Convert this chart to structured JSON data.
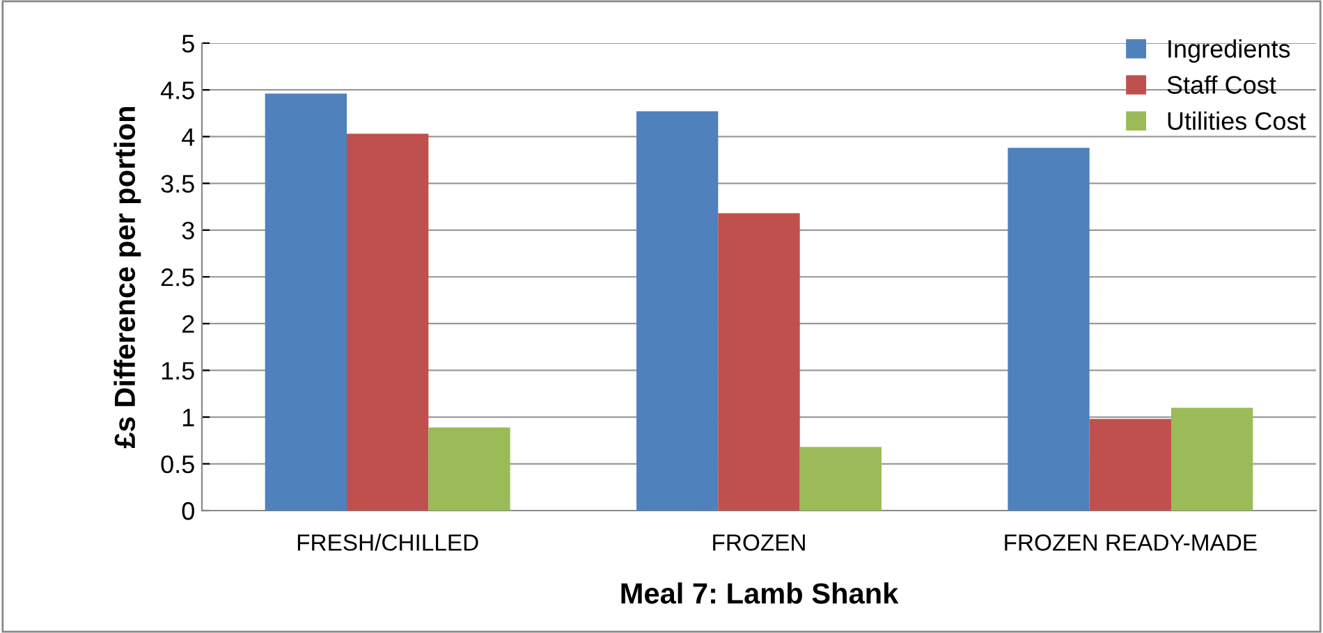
{
  "chart_data": {
    "type": "bar",
    "xlabel": "Meal 7: Lamb Shank",
    "ylabel": "£s Difference per portion",
    "categories": [
      "FRESH/CHILLED",
      "FROZEN",
      "FROZEN READY-MADE"
    ],
    "series": [
      {
        "name": "Ingredients",
        "color": "#4f81bd",
        "values": [
          4.46,
          4.27,
          3.88
        ]
      },
      {
        "name": "Staff Cost",
        "color": "#c0504d",
        "values": [
          4.03,
          3.18,
          0.98
        ]
      },
      {
        "name": "Utilities Cost",
        "color": "#9bbb59",
        "values": [
          0.89,
          0.68,
          1.1
        ]
      }
    ],
    "ylim": [
      0,
      5
    ],
    "yticks": [
      0,
      0.5,
      1,
      1.5,
      2,
      2.5,
      3,
      3.5,
      4,
      4.5,
      5
    ],
    "grid": "y",
    "legend": "top right"
  }
}
